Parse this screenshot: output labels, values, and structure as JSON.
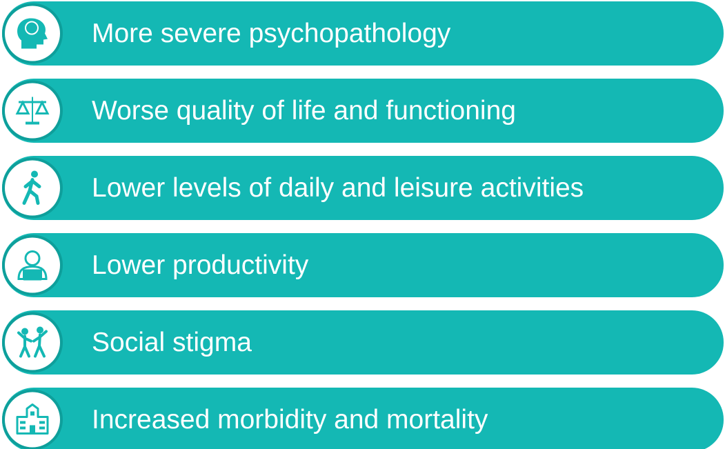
{
  "items": [
    {
      "label": "More severe psychopathology"
    },
    {
      "label": "Worse quality of life and functioning"
    },
    {
      "label": "Lower levels of daily and leisure activities"
    },
    {
      "label": "Lower productivity"
    },
    {
      "label": "Social stigma"
    },
    {
      "label": "Increased morbidity and mortality"
    }
  ]
}
